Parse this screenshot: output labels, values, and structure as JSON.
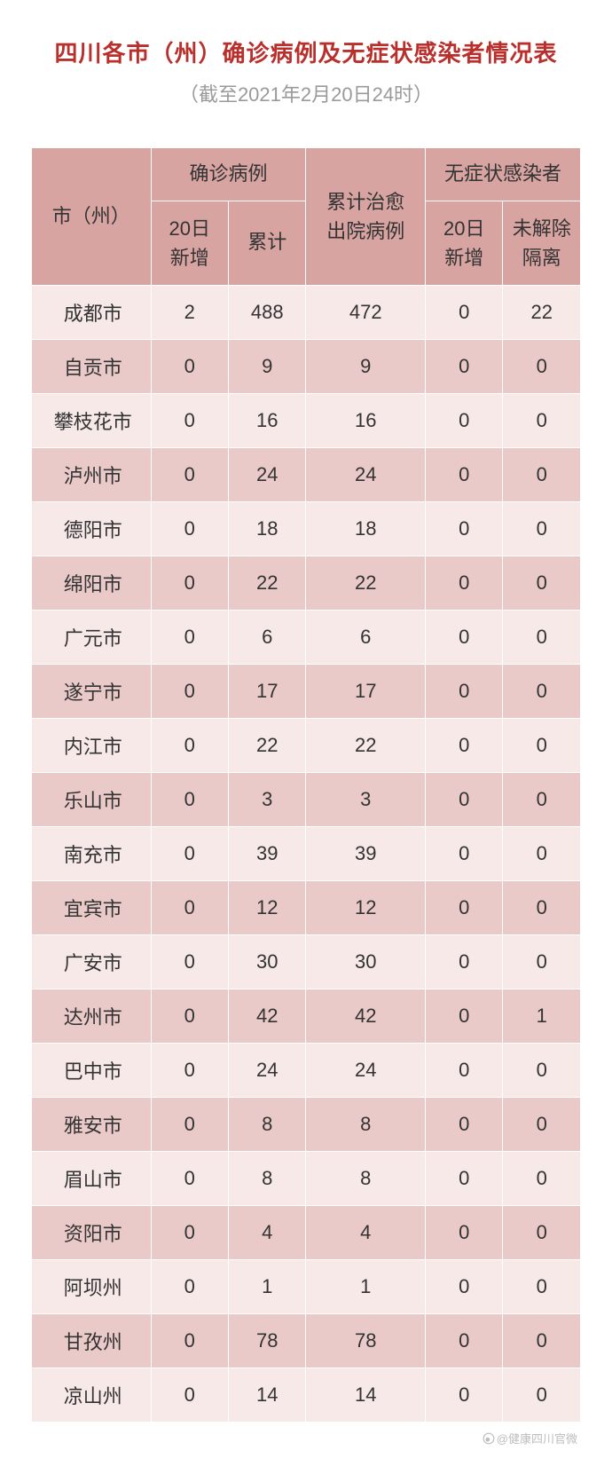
{
  "title": "四川各市（州）确诊病例及无症状感染者情况表",
  "subtitle": "（截至2021年2月20日24时）",
  "colors": {
    "title_color": "#b82f2c",
    "subtitle_color": "#9a9a9a",
    "header_bg": "#d7a4a2",
    "row_odd_bg": "#f6e9e8",
    "row_even_bg": "#e9cac8",
    "border_color": "#ffffff",
    "text_color": "#333333",
    "credit_color": "#bdbdbd",
    "page_bg": "#ffffff"
  },
  "typography": {
    "title_fontsize": 26,
    "subtitle_fontsize": 22,
    "header_fontsize": 22,
    "cell_fontsize": 22,
    "credit_fontsize": 13
  },
  "table": {
    "type": "table",
    "column_widths_pct": [
      20,
      13,
      13,
      20,
      13,
      13
    ],
    "header": {
      "city": "市（州）",
      "confirmed_group": "确诊病例",
      "confirmed_new": "20日\n新增",
      "confirmed_total": "累计",
      "cured": "累计治愈\n出院病例",
      "asymptomatic_group": "无症状感染者",
      "asymptomatic_new": "20日\n新增",
      "asymptomatic_iso": "未解除\n隔离"
    },
    "rows": [
      {
        "city": "成都市",
        "new": 2,
        "total": 488,
        "cured": 472,
        "anew": 0,
        "aiso": 22
      },
      {
        "city": "自贡市",
        "new": 0,
        "total": 9,
        "cured": 9,
        "anew": 0,
        "aiso": 0
      },
      {
        "city": "攀枝花市",
        "new": 0,
        "total": 16,
        "cured": 16,
        "anew": 0,
        "aiso": 0
      },
      {
        "city": "泸州市",
        "new": 0,
        "total": 24,
        "cured": 24,
        "anew": 0,
        "aiso": 0
      },
      {
        "city": "德阳市",
        "new": 0,
        "total": 18,
        "cured": 18,
        "anew": 0,
        "aiso": 0
      },
      {
        "city": "绵阳市",
        "new": 0,
        "total": 22,
        "cured": 22,
        "anew": 0,
        "aiso": 0
      },
      {
        "city": "广元市",
        "new": 0,
        "total": 6,
        "cured": 6,
        "anew": 0,
        "aiso": 0
      },
      {
        "city": "遂宁市",
        "new": 0,
        "total": 17,
        "cured": 17,
        "anew": 0,
        "aiso": 0
      },
      {
        "city": "内江市",
        "new": 0,
        "total": 22,
        "cured": 22,
        "anew": 0,
        "aiso": 0
      },
      {
        "city": "乐山市",
        "new": 0,
        "total": 3,
        "cured": 3,
        "anew": 0,
        "aiso": 0
      },
      {
        "city": "南充市",
        "new": 0,
        "total": 39,
        "cured": 39,
        "anew": 0,
        "aiso": 0
      },
      {
        "city": "宜宾市",
        "new": 0,
        "total": 12,
        "cured": 12,
        "anew": 0,
        "aiso": 0
      },
      {
        "city": "广安市",
        "new": 0,
        "total": 30,
        "cured": 30,
        "anew": 0,
        "aiso": 0
      },
      {
        "city": "达州市",
        "new": 0,
        "total": 42,
        "cured": 42,
        "anew": 0,
        "aiso": 1
      },
      {
        "city": "巴中市",
        "new": 0,
        "total": 24,
        "cured": 24,
        "anew": 0,
        "aiso": 0
      },
      {
        "city": "雅安市",
        "new": 0,
        "total": 8,
        "cured": 8,
        "anew": 0,
        "aiso": 0
      },
      {
        "city": "眉山市",
        "new": 0,
        "total": 8,
        "cured": 8,
        "anew": 0,
        "aiso": 0
      },
      {
        "city": "资阳市",
        "new": 0,
        "total": 4,
        "cured": 4,
        "anew": 0,
        "aiso": 0
      },
      {
        "city": "阿坝州",
        "new": 0,
        "total": 1,
        "cured": 1,
        "anew": 0,
        "aiso": 0
      },
      {
        "city": "甘孜州",
        "new": 0,
        "total": 78,
        "cured": 78,
        "anew": 0,
        "aiso": 0
      },
      {
        "city": "凉山州",
        "new": 0,
        "total": 14,
        "cured": 14,
        "anew": 0,
        "aiso": 0
      }
    ]
  },
  "credit": "@健康四川官微"
}
